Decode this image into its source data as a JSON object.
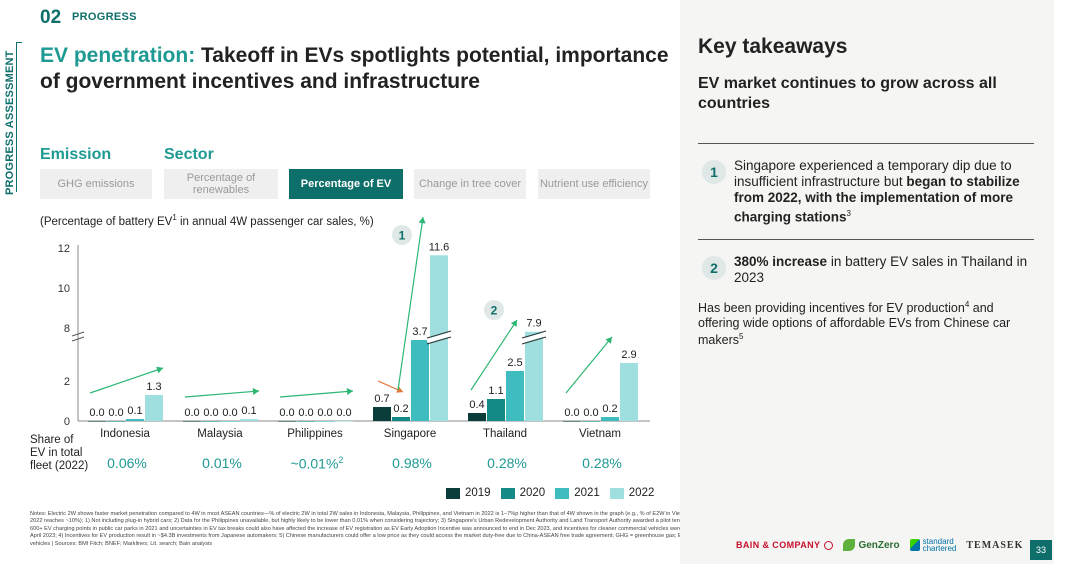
{
  "header": {
    "section_number": "02",
    "section_label": "PROGRESS",
    "side_label": "PROGRESS ASSESSMENT",
    "title_accent": "EV penetration:",
    "title_rest": " Takeoff in EVs spotlights potential, importance of government incentives and infrastructure"
  },
  "tabs": {
    "emission_label": "Emission",
    "sector_label": "Sector",
    "items": [
      {
        "label": "GHG emissions",
        "active": false
      },
      {
        "label": "Percentage of renewables",
        "active": false
      },
      {
        "label": "Percentage of EV",
        "active": true
      },
      {
        "label": "Change in tree cover",
        "active": false
      },
      {
        "label": "Nutrient use efficiency",
        "active": false
      }
    ]
  },
  "chart_data": {
    "type": "bar",
    "title": "(Percentage of battery EV¹ in annual 4W passenger car sales, %)",
    "title_main": "(Percentage of battery EV",
    "title_sup": "1",
    "title_tail": " in annual 4W passenger car sales, %)",
    "categories": [
      "Indonesia",
      "Malaysia",
      "Philippines",
      "Singapore",
      "Thailand",
      "Vietnam"
    ],
    "series": [
      {
        "name": "2019",
        "color": "#0b3d3a",
        "values": [
          0.0,
          0.0,
          0.0,
          0.7,
          0.4,
          0.0
        ]
      },
      {
        "name": "2020",
        "color": "#138a85",
        "values": [
          0.0,
          0.0,
          0.0,
          0.2,
          1.1,
          0.0
        ]
      },
      {
        "name": "2021",
        "color": "#3fbcc0",
        "values": [
          0.1,
          0.0,
          0.0,
          3.7,
          2.5,
          0.2
        ]
      },
      {
        "name": "2022",
        "color": "#9fdfe0",
        "values": [
          1.3,
          0.1,
          0.0,
          11.6,
          7.9,
          2.9
        ]
      }
    ],
    "y_ticks": [
      "0",
      "2",
      "8",
      "10",
      "12"
    ],
    "axis_break": true,
    "ylim": [
      0,
      12
    ],
    "annotations": [
      "1",
      "2"
    ]
  },
  "share": {
    "label": "Share of EV in total fleet (2022)",
    "values": [
      "0.06%",
      "0.01%",
      "~0.01%",
      "0.98%",
      "0.28%",
      "0.28%"
    ],
    "philippines_sup": "2"
  },
  "notes": "Notes: Electric 2W shows faster market penetration compared to 4W in most ASEAN countries—% of electric 2W in total 2W sales in Indonesia, Malaysia, Philippines, and Vietnam in 2022 is 1–7%p higher than that of 4W shown in the graph (e.g., % of E2W in Vietnam in 2022 reaches ~10%); 1) Not including plug-in hybrid cars; 2) Data for the Philippines unavailable, but highly likely to be lower than 0.01% when considering trajectory; 3) Singapore's Urban Redevelopment Authority and Land Transport Authority awarded a pilot tender for 600+ EV charging points in public car parks in 2021 and uncertainties in EV tax breaks could also have affected the increase of EV registration as EV Early Adoption Incentive was announced to end in Dec 2023, and incentives for cleaner commercial vehicles were halved in April 2023; 4) Incentives for EV production result in ~$4.3B investments from Japanese automakers; 5) Chinese manufacturers could offer a low price as they could access the market duty-free due to China-ASEAN free trade agreement; GHG = greenhouse gas; EV = electric vehicles | Sources: BMI Fitch; BNEF; Marklines; Lit. search; Bain analysis",
  "takeaways": {
    "title": "Key takeaways",
    "subtitle": "EV market continues to grow across all countries",
    "item1_num": "1",
    "item1_text": "Singapore experienced a temporary dip due to insufficient infrastructure but ",
    "item1_bold": "began to stabilize from 2022, with the implementation of more charging stations",
    "item1_sup": "3",
    "item2_num": "2",
    "item2_bold": "380% increase",
    "item2_text": " in battery EV sales in Thailand in 2023",
    "note_text": "Has been providing incentives for EV production",
    "note_sup1": "4",
    "note_text2": " and offering wide options of affordable EVs from Chinese car makers",
    "note_sup2": "5"
  },
  "footer": {
    "bain": "BAIN & COMPANY",
    "genzero": "GenZero",
    "sc_line1": "standard",
    "sc_line2": "chartered",
    "temasek": "TEMASEK",
    "page": "33"
  }
}
